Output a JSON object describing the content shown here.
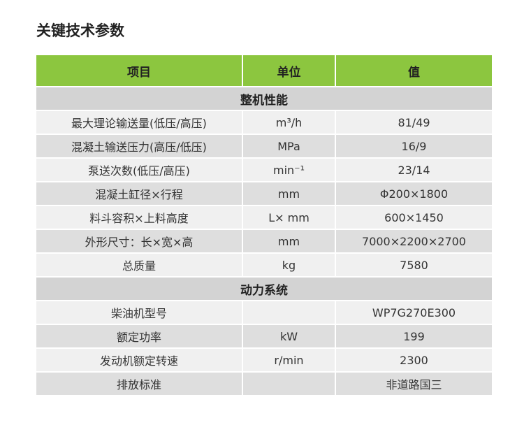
{
  "title": "关键技术参数",
  "colors": {
    "header_bg": "#8cc63f",
    "section_bg": "#d3d3d3",
    "row_light": "#f0f0f0",
    "row_dark": "#dedede"
  },
  "table": {
    "headers": [
      "项目",
      "单位",
      "值"
    ],
    "sections": [
      {
        "name": "整机性能",
        "rows": [
          [
            "最大理论输送量(低压/高压)",
            "m³/h",
            "81/49"
          ],
          [
            "混凝土输送压力(高压/低压)",
            "MPa",
            "16/9"
          ],
          [
            "泵送次数(低压/高压)",
            "min⁻¹",
            "23/14"
          ],
          [
            "混凝土缸径×行程",
            "mm",
            "Φ200×1800"
          ],
          [
            "料斗容积×上料高度",
            "L× mm",
            "600×1450"
          ],
          [
            "外形尺寸：长×宽×高",
            "mm",
            "7000×2200×2700"
          ],
          [
            "总质量",
            "kg",
            "7580"
          ]
        ]
      },
      {
        "name": "动力系统",
        "rows": [
          [
            "柴油机型号",
            "",
            "WP7G270E300"
          ],
          [
            "额定功率",
            "kW",
            "199"
          ],
          [
            "发动机额定转速",
            "r/min",
            "2300"
          ],
          [
            "排放标准",
            "",
            "非道路国三"
          ]
        ]
      }
    ]
  }
}
